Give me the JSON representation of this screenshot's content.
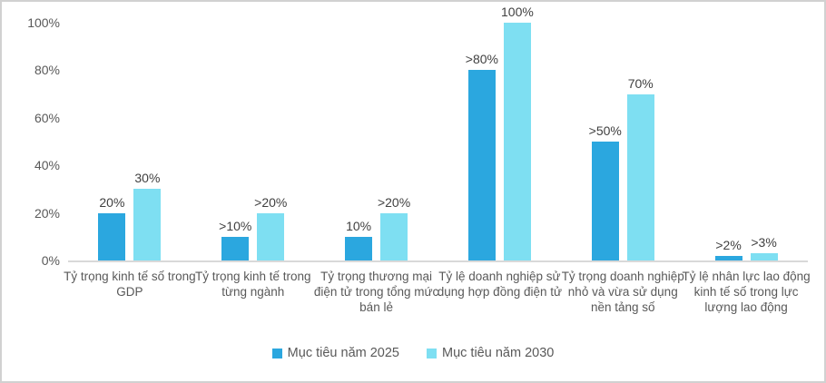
{
  "frame": {
    "background": "#ffffff",
    "border_color": "#d1d1d1"
  },
  "chart_data": {
    "type": "bar",
    "title": "",
    "xlabel": "",
    "ylabel": "",
    "categories": [
      "Tỷ trọng kinh tế số trong GDP",
      "Tỷ trọng kinh tế trong từng ngành",
      "Tỷ trọng thương mại điện tử trong tổng mức bán lẻ",
      "Tỷ lệ doanh nghiệp sử dụng hợp đồng điện tử",
      "Tỷ trọng doanh nghiệp nhỏ và vừa sử dụng nền tảng số",
      "Tỷ lệ nhân lực lao động kinh tế số trong lực lượng lao động"
    ],
    "series": [
      {
        "name": "Mục tiêu năm 2025",
        "color": "#2BA7DF",
        "values": [
          20,
          10,
          10,
          80,
          50,
          2
        ],
        "data_labels": [
          "20%",
          ">10%",
          "10%",
          ">80%",
          ">50%",
          ">2%"
        ]
      },
      {
        "name": "Mục tiêu năm 2030",
        "color": "#7EDFF2",
        "values": [
          30,
          20,
          20,
          100,
          70,
          3
        ],
        "data_labels": [
          "30%",
          ">20%",
          ">20%",
          "100%",
          "70%",
          ">3%"
        ]
      }
    ],
    "y_ticks": [
      "0%",
      "20%",
      "40%",
      "60%",
      "80%",
      "100%"
    ],
    "y_tick_values": [
      0,
      20,
      40,
      60,
      80,
      100
    ],
    "ylim": [
      0,
      100
    ],
    "grid": false,
    "legend_position": "bottom",
    "axis_line_color": "#d9d9d9",
    "tick_text_color": "#595959",
    "data_label_color": "#404040"
  }
}
